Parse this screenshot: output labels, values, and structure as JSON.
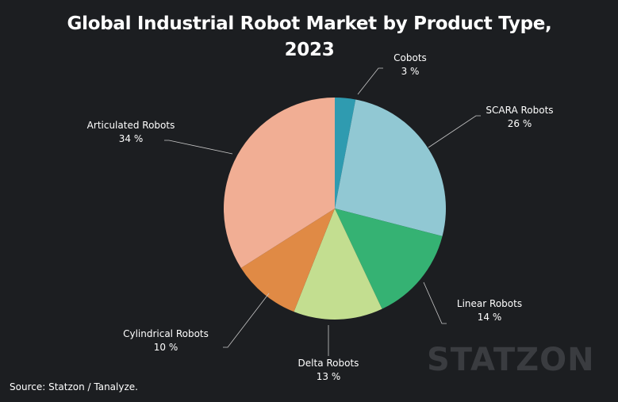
{
  "chart_data": {
    "type": "pie",
    "title": "Global Industrial Robot Market by Product Type, 2023",
    "categories": [
      "Cobots",
      "SCARA Robots",
      "Linear Robots",
      "Delta Robots",
      "Cylindrical Robots",
      "Articulated Robots"
    ],
    "values": [
      3,
      26,
      14,
      13,
      10,
      34
    ],
    "value_labels": [
      "3 %",
      "26 %",
      "14 %",
      "13 %",
      "10 %",
      "34 %"
    ],
    "colors": [
      "#2f9bb0",
      "#91c8d3",
      "#35b273",
      "#c3de90",
      "#e08a45",
      "#f1ae94"
    ],
    "start_angle_deg": 0,
    "direction": "clockwise"
  },
  "source": "Source: Statzon / Tanalyze.",
  "watermark": "STATZON",
  "theme": {
    "background": "#1c1e21",
    "text": "#ffffff",
    "leader_line": "#c8c8c8",
    "watermark": "#3a3c40"
  }
}
